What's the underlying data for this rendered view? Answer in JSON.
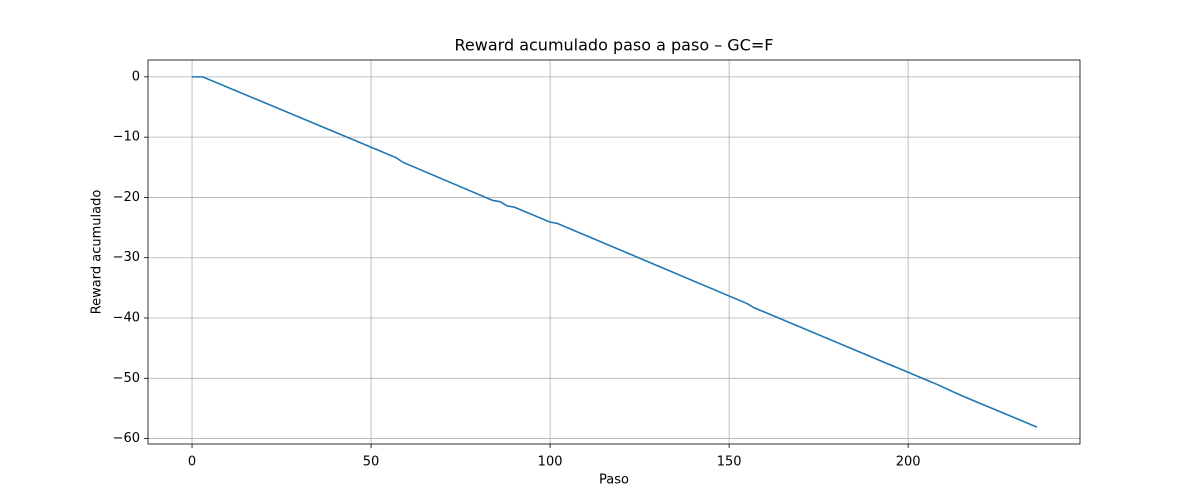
{
  "chart_data": {
    "type": "line",
    "title": "Reward acumulado paso a paso – GC=F",
    "x_label": "Paso",
    "y_label": "Reward acumulado",
    "x": [
      0,
      3,
      57,
      59,
      84,
      86,
      88,
      90,
      100,
      102,
      155,
      157,
      208,
      215,
      236
    ],
    "series": [
      {
        "name": "Reward acumulado",
        "color": "#1f77b4",
        "values": [
          0,
          0,
          -13.4,
          -14.2,
          -20.5,
          -20.7,
          -21.4,
          -21.6,
          -24.1,
          -24.3,
          -37.6,
          -38.3,
          -51.0,
          -52.9,
          -58.1
        ]
      }
    ],
    "xlim": [
      -12.3,
      248
    ],
    "ylim": [
      -60.9,
      2.8
    ],
    "xticks": [
      0,
      50,
      100,
      150,
      200
    ],
    "yticks": [
      0,
      {
        "value": -10,
        "label": "−10"
      },
      {
        "value": -20,
        "label": "−20"
      },
      {
        "value": -30,
        "label": "−30"
      },
      {
        "value": -40,
        "label": "−40"
      },
      {
        "value": -50,
        "label": "−50"
      },
      {
        "value": -60,
        "label": "−60"
      }
    ],
    "grid": true
  }
}
